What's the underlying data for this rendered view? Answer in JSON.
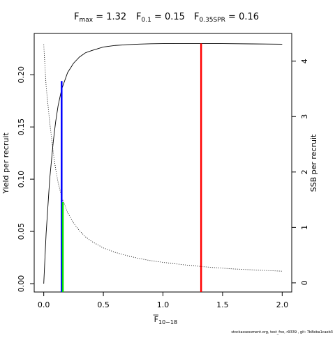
{
  "chart_data": {
    "type": "line",
    "title": {
      "parts": [
        {
          "main": "F",
          "sub": "max",
          "value": "= 1.32"
        },
        {
          "main": "F",
          "sub": "0.1",
          "value": "= 0.15"
        },
        {
          "main": "F",
          "sub": "0.35SPR",
          "value": "= 0.16"
        }
      ]
    },
    "xlabel": {
      "main": "F",
      "sub": "10−18"
    },
    "ylabel": "Yield per recruit",
    "y2label": "SSB per recruit",
    "xlim": [
      -0.08,
      2.08
    ],
    "ylim": [
      -0.008,
      0.2395
    ],
    "y2lim": [
      -0.165,
      4.5
    ],
    "xticks": [
      "0.0",
      "0.5",
      "1.0",
      "1.5",
      "2.0"
    ],
    "yticks": [
      "0.00",
      "0.05",
      "0.10",
      "0.15",
      "0.20"
    ],
    "y2ticks": [
      "0",
      "1",
      "2",
      "3",
      "4"
    ],
    "grid": false,
    "series": [
      {
        "axis": "left",
        "style": "solid",
        "x": [
          0,
          0.02,
          0.05,
          0.08,
          0.1,
          0.12,
          0.15,
          0.2,
          0.25,
          0.3,
          0.35,
          0.4,
          0.5,
          0.6,
          0.7,
          0.8,
          0.9,
          1.0,
          1.1,
          1.2,
          1.32,
          1.5,
          1.75,
          2.0
        ],
        "values": [
          0,
          0.048,
          0.1,
          0.136,
          0.155,
          0.17,
          0.186,
          0.202,
          0.211,
          0.217,
          0.221,
          0.223,
          0.2265,
          0.228,
          0.2288,
          0.2293,
          0.2296,
          0.2298,
          0.2299,
          0.2299,
          0.2299,
          0.2298,
          0.2295,
          0.2292
        ]
      },
      {
        "axis": "right",
        "style": "dotted",
        "x": [
          0,
          0.02,
          0.05,
          0.08,
          0.1,
          0.12,
          0.15,
          0.2,
          0.25,
          0.3,
          0.35,
          0.4,
          0.5,
          0.6,
          0.7,
          0.8,
          0.9,
          1.0,
          1.2,
          1.4,
          1.6,
          1.8,
          2.0
        ],
        "values": [
          4.3,
          3.55,
          2.9,
          2.35,
          2.05,
          1.82,
          1.55,
          1.27,
          1.08,
          0.94,
          0.83,
          0.75,
          0.63,
          0.55,
          0.49,
          0.44,
          0.4,
          0.37,
          0.32,
          0.28,
          0.25,
          0.23,
          0.21
        ]
      }
    ],
    "reference_lines": [
      {
        "x": 0.15,
        "y_bottom": -0.008,
        "y_top": 0.194,
        "color": "#0000ff"
      },
      {
        "x": 0.16,
        "y_bottom": -0.008,
        "y_top": 0.078,
        "color": "#00dd00"
      },
      {
        "x": 1.32,
        "y_bottom": -0.008,
        "y_top": 0.2299,
        "color": "#ff0000"
      }
    ]
  },
  "footer": "stockassessment.org, test_fno, r9339 , git: 7b8eba1caeb3"
}
